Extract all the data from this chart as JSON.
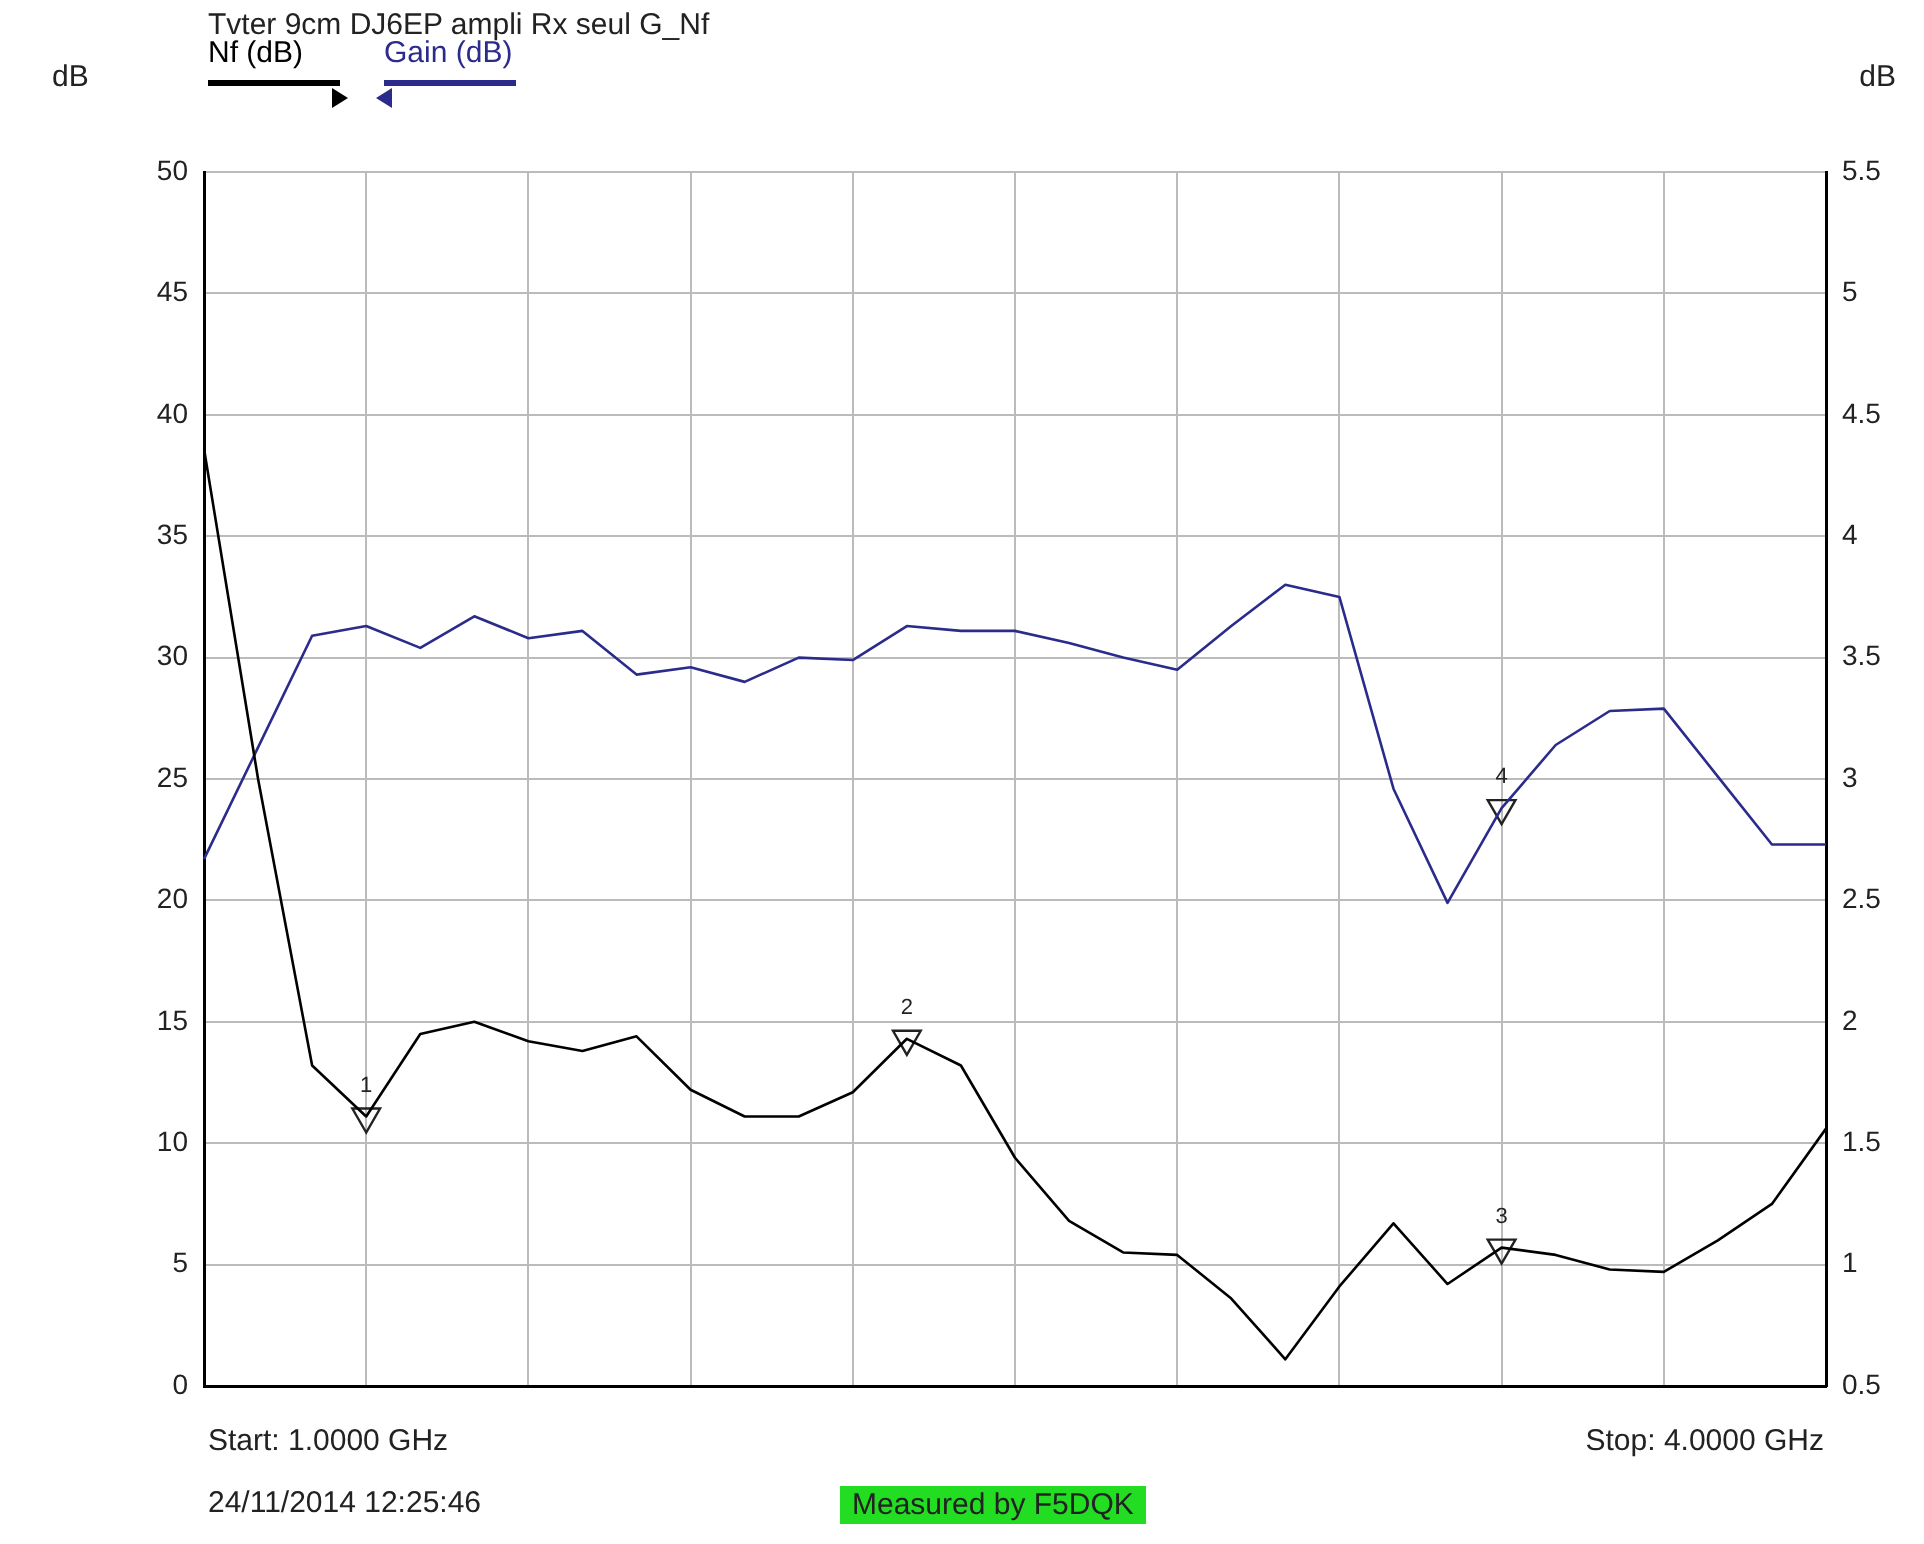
{
  "chart_data": {
    "type": "line",
    "title": "Tvter 9cm DJ6EP ampli Rx seul G_Nf",
    "ylabel": "dB",
    "y2label": "dB",
    "categories": [
      null,
      null,
      null,
      null,
      null,
      null,
      null,
      null,
      null,
      null,
      null,
      null,
      null,
      null,
      null,
      null,
      null,
      null,
      null,
      null,
      null,
      null,
      null,
      null,
      null,
      null,
      null,
      null,
      null,
      null,
      null
    ],
    "ylim": [
      0,
      50
    ],
    "yticks": [
      0,
      5,
      10,
      15,
      20,
      25,
      30,
      35,
      40,
      45,
      50
    ],
    "y2lim": [
      0.5,
      5.5
    ],
    "y2ticks": [
      0.5,
      1,
      1.5,
      2,
      2.5,
      3,
      3.5,
      4,
      4.5,
      5,
      5.5
    ],
    "grid": true,
    "legend": "top left",
    "marker": "none",
    "line_style": "solid",
    "series": [
      {
        "name": "Nf (dB)",
        "color": "#000000",
        "axis": "y2",
        "values": [
          4.36,
          3.0,
          1.82,
          1.61,
          1.95,
          2.0,
          1.92,
          1.88,
          1.94,
          1.72,
          1.61,
          1.61,
          1.71,
          1.93,
          1.82,
          1.44,
          1.18,
          1.05,
          1.04,
          0.86,
          0.61,
          0.91,
          1.17,
          0.92,
          1.07,
          1.04,
          0.98,
          0.97,
          1.1,
          1.25,
          1.56
        ]
      },
      {
        "name": "Gain (dB)",
        "color": "#2b2b8c",
        "axis": "y",
        "values": [
          21.7,
          26.3,
          30.9,
          31.3,
          30.4,
          31.7,
          30.8,
          31.1,
          29.3,
          29.6,
          29.0,
          30.0,
          29.9,
          31.3,
          31.1,
          31.1,
          30.6,
          30.0,
          29.5,
          31.3,
          33.0,
          32.5,
          24.6,
          19.9,
          23.8,
          26.4,
          27.8,
          27.9,
          25.1,
          22.3,
          22.3
        ]
      },
      {
        "type": "scatter",
        "marker": "triangle",
        "color": "#222222",
        "axis": "y2",
        "values": [
          null,
          null,
          null,
          1.61,
          null,
          null,
          null,
          null,
          null,
          null,
          null,
          null,
          null,
          1.93,
          null,
          null,
          null,
          null,
          null,
          null,
          null,
          null,
          null,
          null,
          1.07,
          null,
          null,
          null,
          null,
          null,
          null
        ]
      },
      {
        "type": "scatter",
        "marker": "triangle",
        "color": "#222222",
        "axis": "y",
        "values": [
          null,
          null,
          null,
          null,
          null,
          null,
          null,
          null,
          null,
          null,
          null,
          null,
          null,
          null,
          null,
          null,
          null,
          null,
          null,
          null,
          null,
          null,
          null,
          null,
          23.8,
          null,
          null,
          null,
          null,
          null,
          null
        ]
      }
    ],
    "annotations": [
      "1",
      "2",
      "3",
      "4",
      "Start: 1.0000 GHz",
      "Stop: 4.0000 GHz",
      "24/11/2014 12:25:46",
      "Measured by F5DQK"
    ]
  }
}
